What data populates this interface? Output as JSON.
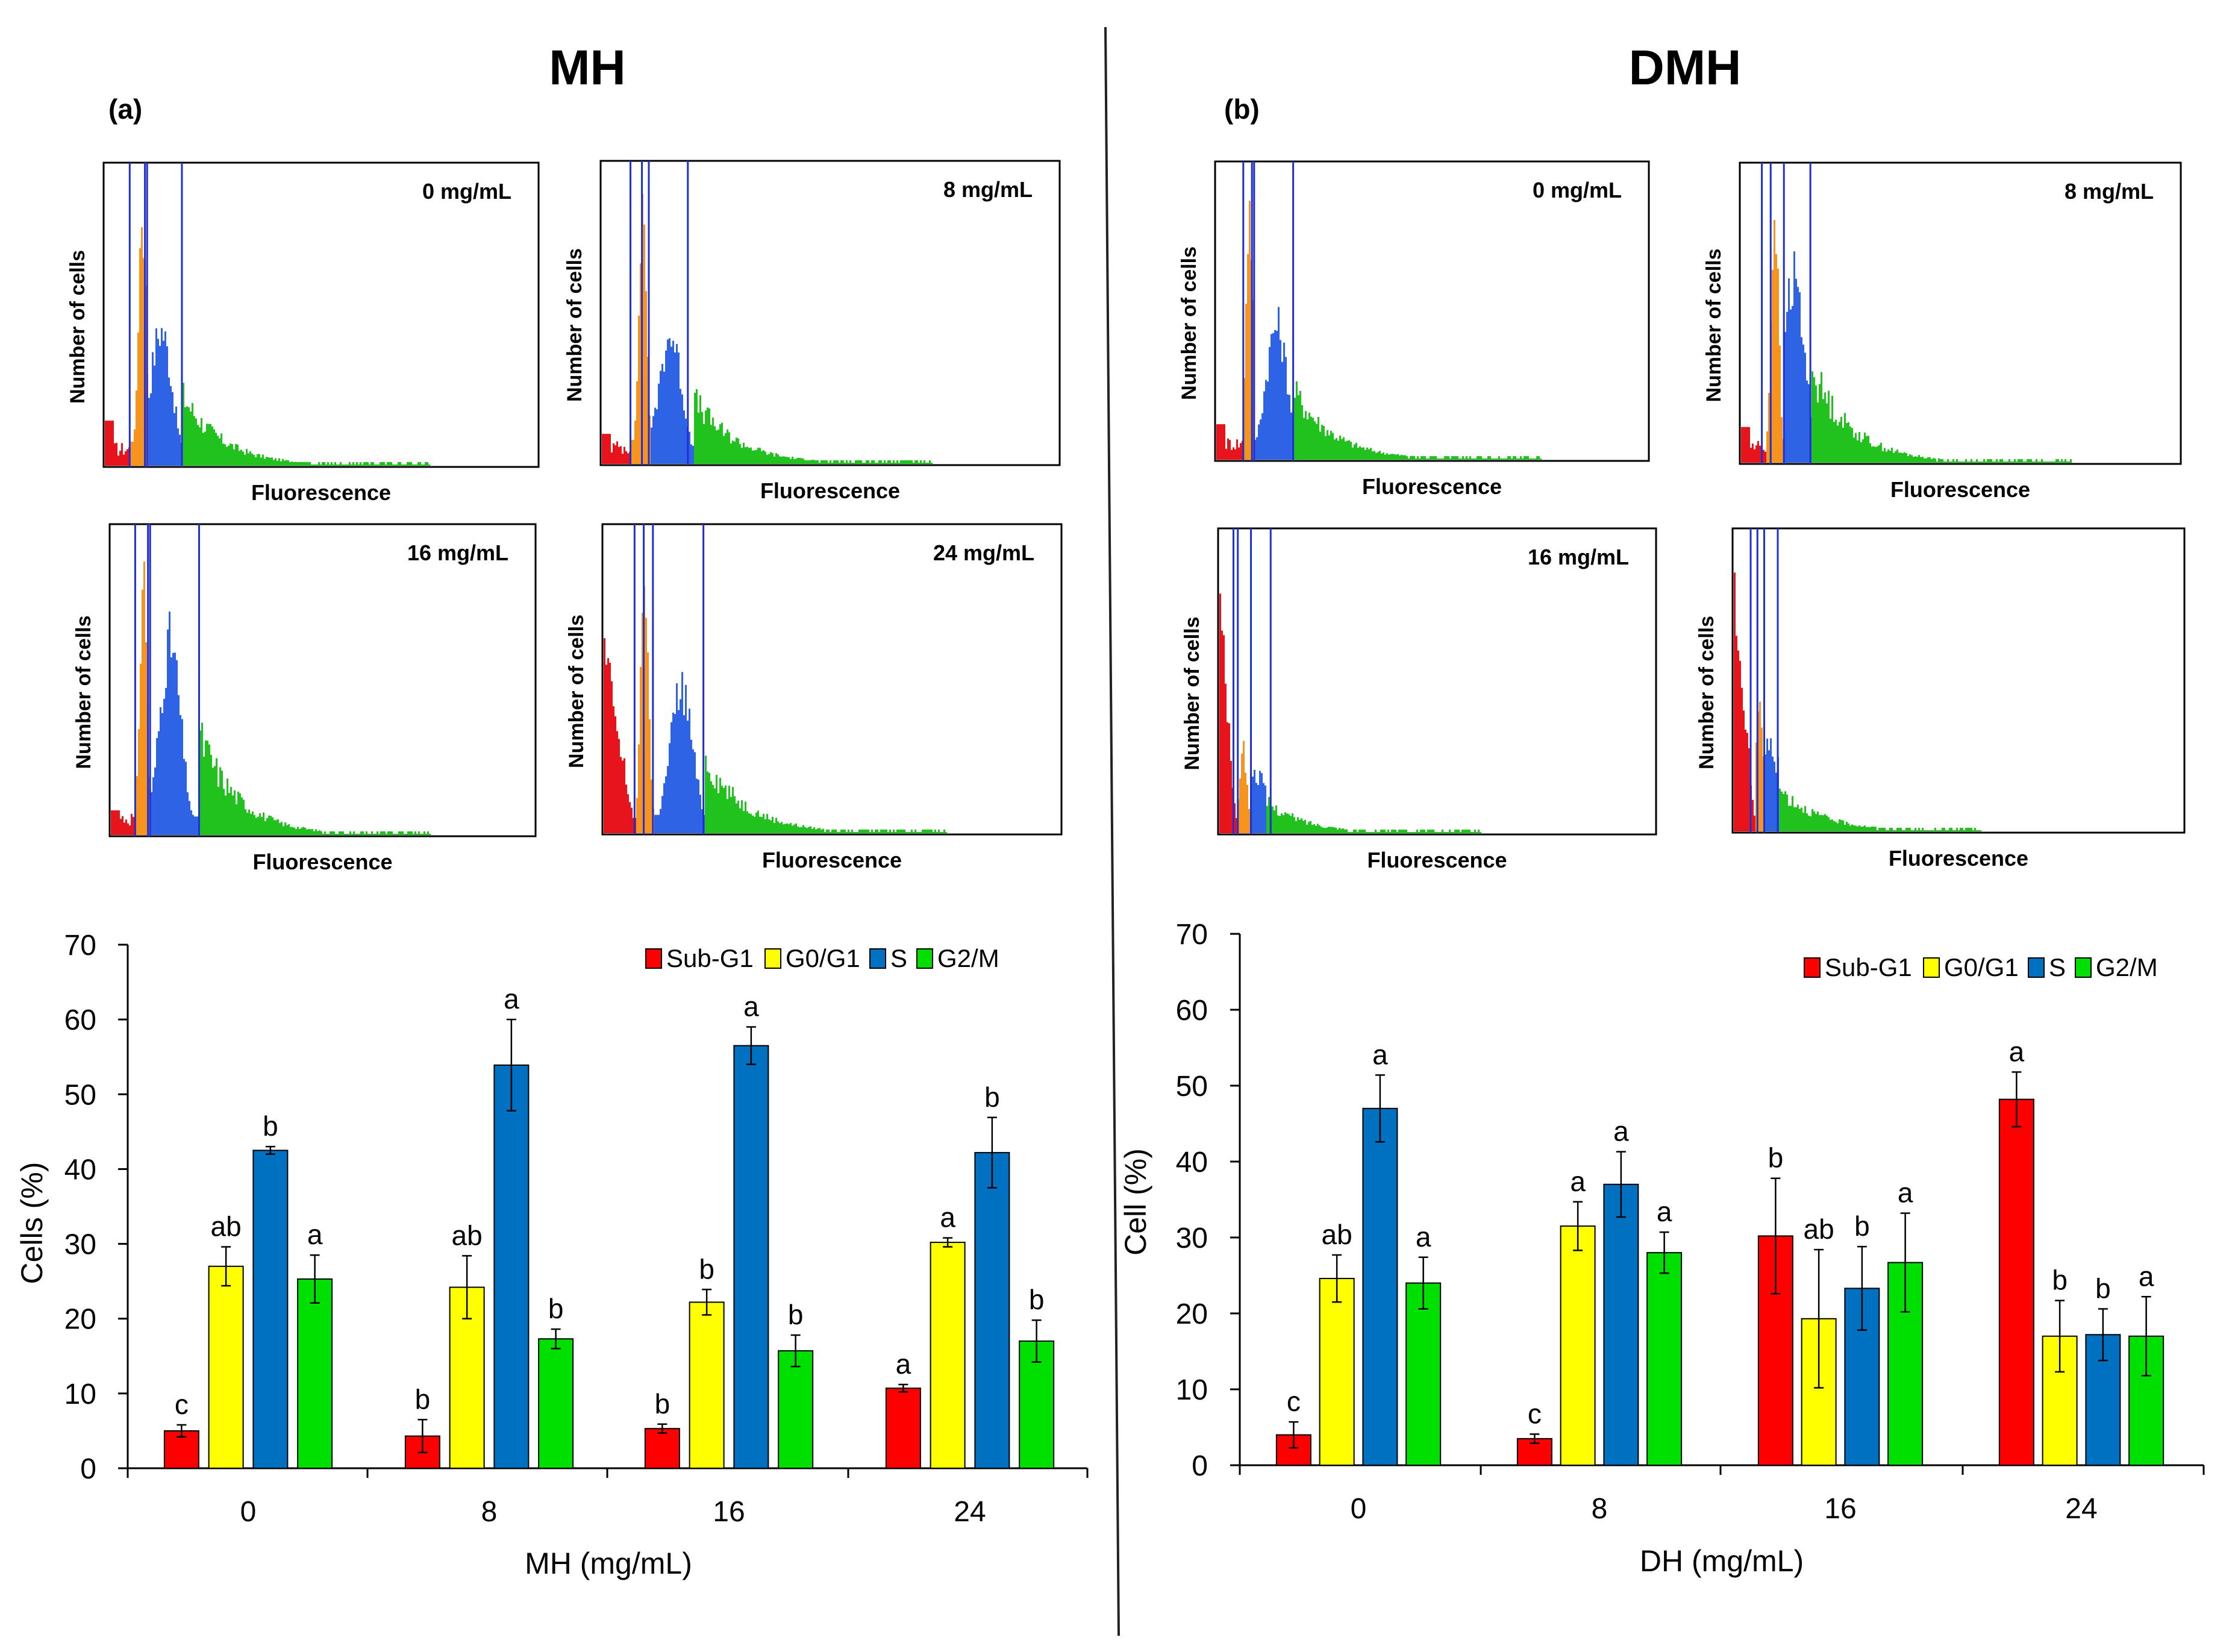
{
  "panels": [
    {
      "title": "MH",
      "label": "(a)",
      "histograms": [
        {
          "dose": "0 mg/mL",
          "ylabel": "Number of cells",
          "xlabel": "Fluorescence"
        },
        {
          "dose": "8 mg/mL",
          "ylabel": "Number of cells",
          "xlabel": "Fluorescence"
        },
        {
          "dose": "16 mg/mL",
          "ylabel": "Number of cells",
          "xlabel": "Fluorescence"
        },
        {
          "dose": "24 mg/mL",
          "ylabel": "Number of cells",
          "xlabel": "Fluorescence"
        }
      ]
    },
    {
      "title": "DMH",
      "label": "(b)",
      "histograms": [
        {
          "dose": "0 mg/mL",
          "ylabel": "Number of cells",
          "xlabel": "Fluorescence"
        },
        {
          "dose": "8 mg/mL",
          "ylabel": "Number of cells",
          "xlabel": "Fluorescence"
        },
        {
          "dose": "16 mg/mL",
          "ylabel": "Number of cells",
          "xlabel": "Fluorescence"
        },
        {
          "dose": "",
          "ylabel": "Number of cells",
          "xlabel": "Fluorescence"
        }
      ]
    }
  ],
  "histogram_phase_colors": {
    "sub_g1": "#e8141b",
    "g0_g1": "#f7941d",
    "s": "#2e63e6",
    "g2_m": "#22c21e",
    "gate": "#1f2fd6"
  },
  "chart_data": [
    {
      "type": "bar",
      "categories": [
        "0",
        "8",
        "16",
        "24"
      ],
      "xlabel": "MH (mg/mL)",
      "ylabel": "Cells (%)",
      "ylim": [
        0,
        70
      ],
      "yticks": [
        0,
        10,
        20,
        30,
        40,
        50,
        60,
        70
      ],
      "legend": "top-right",
      "series": [
        {
          "name": "Sub-G1",
          "color": "#ff0000",
          "values": [
            5.0,
            4.3,
            5.3,
            10.7
          ],
          "errors": [
            0.8,
            2.2,
            0.6,
            0.5
          ],
          "letters": [
            "c",
            "b",
            "b",
            "a"
          ]
        },
        {
          "name": "G0/G1",
          "color": "#ffff00",
          "values": [
            27.0,
            24.2,
            22.2,
            30.2
          ],
          "errors": [
            2.6,
            4.2,
            1.7,
            0.6
          ],
          "letters": [
            "ab",
            "ab",
            "b",
            "a"
          ]
        },
        {
          "name": "S",
          "color": "#0070c0",
          "values": [
            42.5,
            53.9,
            56.5,
            42.2
          ],
          "errors": [
            0.5,
            6.1,
            2.5,
            4.7
          ],
          "letters": [
            "b",
            "a",
            "a",
            "b"
          ]
        },
        {
          "name": "G2/M",
          "color": "#00e000",
          "values": [
            25.3,
            17.3,
            15.7,
            17.0
          ],
          "errors": [
            3.2,
            1.3,
            2.1,
            2.8
          ],
          "letters": [
            "a",
            "b",
            "b",
            "b"
          ]
        }
      ]
    },
    {
      "type": "bar",
      "categories": [
        "0",
        "8",
        "16",
        "24"
      ],
      "xlabel": "DH (mg/mL)",
      "ylabel": "Cell (%)",
      "ylim": [
        0,
        70
      ],
      "yticks": [
        0,
        10,
        20,
        30,
        40,
        50,
        60,
        70
      ],
      "legend": "top-right",
      "series": [
        {
          "name": "Sub-G1",
          "color": "#ff0000",
          "values": [
            4.0,
            3.5,
            30.2,
            48.2
          ],
          "errors": [
            1.7,
            0.6,
            7.6,
            3.6
          ],
          "letters": [
            "c",
            "c",
            "b",
            "a"
          ]
        },
        {
          "name": "G0/G1",
          "color": "#ffff00",
          "values": [
            24.6,
            31.5,
            19.3,
            17.0
          ],
          "errors": [
            3.1,
            3.2,
            9.1,
            4.7
          ],
          "letters": [
            "ab",
            "a",
            "ab",
            "b"
          ]
        },
        {
          "name": "S",
          "color": "#0070c0",
          "values": [
            47.0,
            37.0,
            23.3,
            17.2
          ],
          "errors": [
            4.4,
            4.3,
            5.5,
            3.4
          ],
          "letters": [
            "a",
            "a",
            "b",
            "b"
          ]
        },
        {
          "name": "G2/M",
          "color": "#00e000",
          "values": [
            24.0,
            28.0,
            26.7,
            17.0
          ],
          "errors": [
            3.4,
            2.7,
            6.5,
            5.2
          ],
          "letters": [
            "a",
            "a",
            "a",
            "a"
          ]
        }
      ]
    }
  ]
}
